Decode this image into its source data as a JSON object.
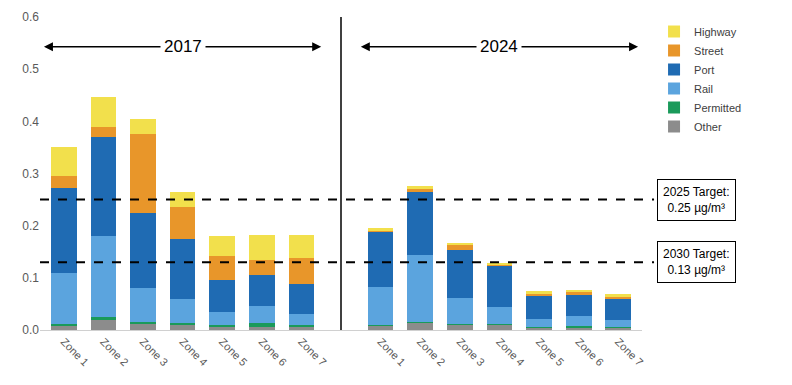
{
  "chart_data": {
    "type": "bar",
    "stacked": true,
    "categories": [
      "Zone 1",
      "Zone 2",
      "Zone 3",
      "Zone 4",
      "Zone 5",
      "Zone 6",
      "Zone 7",
      null,
      "Zone 1",
      "Zone 2",
      "Zone 3",
      "Zone 4",
      "Zone 5",
      "Zone 6",
      "Zone 7"
    ],
    "series": [
      {
        "name": "Other",
        "color": "#8c8c8c",
        "values": [
          0.008,
          0.02,
          0.012,
          0.01,
          0.006,
          0.006,
          0.006,
          null,
          0.007,
          0.014,
          0.01,
          0.01,
          0.004,
          0.004,
          0.004
        ]
      },
      {
        "name": "Permitted",
        "color": "#1a9a5a",
        "values": [
          0.004,
          0.004,
          0.003,
          0.003,
          0.004,
          0.008,
          0.004,
          null,
          0.002,
          0.002,
          0.002,
          0.002,
          0.002,
          0.004,
          0.002
        ]
      },
      {
        "name": "Rail",
        "color": "#5ba4de",
        "values": [
          0.098,
          0.156,
          0.065,
          0.047,
          0.025,
          0.032,
          0.02,
          null,
          0.074,
          0.127,
          0.05,
          0.033,
          0.016,
          0.018,
          0.014
        ]
      },
      {
        "name": "Port",
        "color": "#1f6bb3",
        "values": [
          0.162,
          0.19,
          0.145,
          0.115,
          0.06,
          0.059,
          0.058,
          null,
          0.105,
          0.122,
          0.091,
          0.077,
          0.043,
          0.042,
          0.04
        ]
      },
      {
        "name": "Street",
        "color": "#e8962a",
        "values": [
          0.023,
          0.02,
          0.15,
          0.06,
          0.047,
          0.03,
          0.05,
          null,
          0.002,
          0.005,
          0.009,
          0.003,
          0.004,
          0.004,
          0.004
        ]
      },
      {
        "name": "Highway",
        "color": "#f2e04c",
        "values": [
          0.055,
          0.057,
          0.03,
          0.03,
          0.038,
          0.048,
          0.044,
          null,
          0.006,
          0.006,
          0.004,
          0.003,
          0.005,
          0.005,
          0.005
        ]
      }
    ],
    "ylim": [
      0,
      0.6
    ],
    "yticks": [
      {
        "value": 0,
        "label": "0.0"
      },
      0.1,
      0.2,
      0.3,
      0.4,
      0.5,
      0.6
    ],
    "grid": false,
    "legend": "right",
    "annotations": [
      {
        "text": "2017"
      },
      {
        "text": "2024"
      }
    ],
    "target_lines": [
      {
        "value": 0.25,
        "label": [
          "2025 Target:",
          "0.25 µg/m³"
        ]
      },
      {
        "value": 0.13,
        "label": [
          "2030 Target:",
          "0.13 µg/m³"
        ]
      }
    ]
  }
}
